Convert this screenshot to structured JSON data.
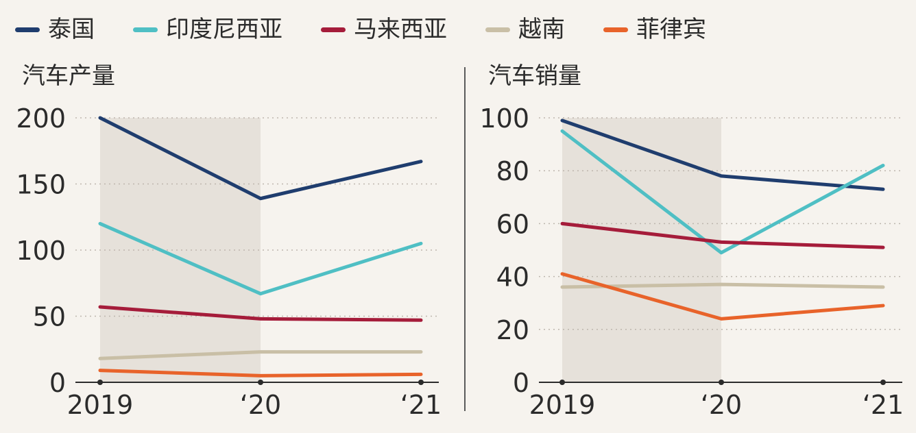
{
  "legend": [
    {
      "name": "泰国",
      "color": "#1f3d6e"
    },
    {
      "name": "印度尼西亚",
      "color": "#4fbfc4"
    },
    {
      "name": "马来西亚",
      "color": "#a51c3a"
    },
    {
      "name": "越南",
      "color": "#c9bfa6"
    },
    {
      "name": "菲律宾",
      "color": "#e8632a"
    }
  ],
  "chart_data": [
    {
      "type": "line",
      "title": "汽车产量",
      "categories": [
        "2019",
        "‘20",
        "‘21"
      ],
      "ylim": [
        0,
        200
      ],
      "yticks": [
        0,
        50,
        100,
        150,
        200
      ],
      "grid": true,
      "shaded_band": [
        "2019",
        "‘20"
      ],
      "series": [
        {
          "name": "泰国",
          "values": [
            200,
            139,
            167
          ]
        },
        {
          "name": "印度尼西亚",
          "values": [
            120,
            67,
            105
          ]
        },
        {
          "name": "马来西亚",
          "values": [
            57,
            48,
            47
          ]
        },
        {
          "name": "越南",
          "values": [
            18,
            23,
            23
          ]
        },
        {
          "name": "菲律宾",
          "values": [
            9,
            5,
            6
          ]
        }
      ]
    },
    {
      "type": "line",
      "title": "汽车销量",
      "categories": [
        "2019",
        "‘20",
        "‘21"
      ],
      "ylim": [
        0,
        100
      ],
      "yticks": [
        0,
        20,
        40,
        60,
        80,
        100
      ],
      "grid": true,
      "shaded_band": [
        "2019",
        "‘20"
      ],
      "series": [
        {
          "name": "泰国",
          "values": [
            99,
            78,
            73
          ]
        },
        {
          "name": "印度尼西亚",
          "values": [
            95,
            49,
            82
          ]
        },
        {
          "name": "马来西亚",
          "values": [
            60,
            53,
            51
          ]
        },
        {
          "name": "越南",
          "values": [
            36,
            37,
            36
          ]
        },
        {
          "name": "菲律宾",
          "values": [
            41,
            24,
            29
          ]
        }
      ]
    }
  ]
}
